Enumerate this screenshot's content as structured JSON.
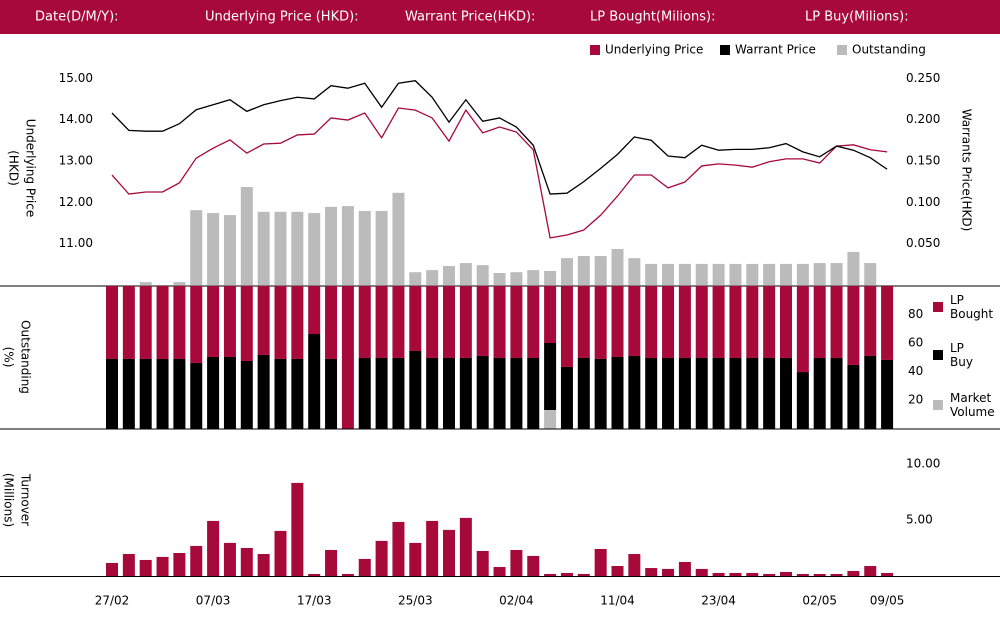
{
  "header": {
    "labels": [
      "Date(D/M/Y):",
      "Underlying Price (HKD):",
      "Warrant  Price(HKD):",
      "LP Bought(Milions):",
      "LP Buy(Milions):"
    ]
  },
  "chart_data": [
    {
      "type": "combo",
      "ylabel": [
        "Underlying Price",
        "(HKD)"
      ],
      "y2label": [
        "Warrants  Price(HKD)"
      ],
      "ylim": [
        10,
        15.2
      ],
      "yticks": [
        {
          "value": 11,
          "label": "11.00"
        },
        {
          "value": 12,
          "label": "12.00"
        },
        {
          "value": 13,
          "label": "13.00"
        },
        {
          "value": 14,
          "label": "14.00"
        },
        {
          "value": 15,
          "label": "15.00"
        }
      ],
      "y2lim": [
        0,
        0.26
      ],
      "y2ticks": [
        {
          "value": 0.05,
          "label": "0.050"
        },
        {
          "value": 0.1,
          "label": "0.100"
        },
        {
          "value": 0.15,
          "label": "0.150"
        },
        {
          "value": 0.2,
          "label": "0.200"
        },
        {
          "value": 0.25,
          "label": "0.250"
        }
      ],
      "series": [
        {
          "name": "Underlying Price",
          "type": "line",
          "color": "#a6093a",
          "axis": "y",
          "values": [
            12.66,
            12.2,
            12.25,
            12.25,
            12.47,
            13.07,
            13.31,
            13.51,
            13.19,
            13.41,
            13.43,
            13.63,
            13.65,
            14.04,
            13.99,
            14.16,
            13.56,
            14.28,
            14.23,
            14.04,
            13.48,
            14.23,
            13.68,
            13.82,
            13.7,
            13.27,
            11.14,
            11.21,
            11.33,
            11.69,
            12.15,
            12.66,
            12.66,
            12.35,
            12.49,
            12.88,
            12.93,
            12.9,
            12.85,
            12.98,
            13.05,
            13.05,
            12.95,
            13.36,
            13.39,
            13.27,
            13.22
          ]
        },
        {
          "name": "Warrant  Price",
          "type": "line",
          "color": "#000000",
          "axis": "y2",
          "values": [
            0.208,
            0.187,
            0.186,
            0.186,
            0.195,
            0.212,
            0.218,
            0.224,
            0.21,
            0.218,
            0.223,
            0.227,
            0.225,
            0.241,
            0.238,
            0.244,
            0.215,
            0.244,
            0.247,
            0.227,
            0.197,
            0.224,
            0.198,
            0.202,
            0.191,
            0.169,
            0.11,
            0.111,
            0.125,
            0.141,
            0.158,
            0.179,
            0.175,
            0.156,
            0.154,
            0.169,
            0.163,
            0.164,
            0.164,
            0.166,
            0.171,
            0.161,
            0.155,
            0.168,
            0.163,
            0.154,
            0.14
          ]
        },
        {
          "name": "Outstanding",
          "type": "bar",
          "color": "#bbbbbb",
          "axis": "y",
          "values": [
            null,
            null,
            10.07,
            null,
            10.07,
            11.81,
            11.74,
            11.69,
            12.37,
            11.77,
            11.77,
            11.77,
            11.74,
            11.89,
            11.91,
            11.79,
            11.79,
            12.23,
            10.31,
            10.36,
            10.46,
            10.53,
            10.48,
            10.29,
            10.31,
            10.36,
            10.34,
            10.65,
            10.7,
            10.7,
            10.87,
            10.65,
            10.51,
            10.51,
            10.51,
            10.51,
            10.51,
            10.51,
            10.51,
            10.51,
            10.51,
            10.51,
            10.53,
            10.53,
            10.8,
            10.53,
            null
          ]
        }
      ]
    },
    {
      "type": "stacked_bar",
      "ylabel": [
        "Outstanding",
        "(%)"
      ],
      "ylim": [
        0,
        100
      ],
      "yticks": [
        20,
        40,
        60,
        80
      ],
      "series": [
        {
          "name": "Market Volume",
          "color": "#bbbbbb",
          "values": [
            null,
            null,
            null,
            null,
            null,
            null,
            null,
            null,
            null,
            null,
            null,
            null,
            null,
            null,
            null,
            null,
            null,
            null,
            null,
            null,
            null,
            null,
            null,
            null,
            null,
            null,
            13,
            null,
            null,
            null,
            null,
            null,
            null,
            null,
            null,
            null,
            null,
            null,
            null,
            null,
            null,
            null,
            null,
            null,
            null,
            null,
            null
          ]
        },
        {
          "name": "LP Buy",
          "color": "#000000",
          "values": [
            48.8,
            48.8,
            48.8,
            48.8,
            48.8,
            46.0,
            50.2,
            50.2,
            47.4,
            51.6,
            48.8,
            48.8,
            66.3,
            48.8,
            0,
            49.5,
            49.5,
            49.5,
            54.4,
            49.5,
            49.5,
            49.5,
            50.9,
            49.5,
            49.5,
            49.5,
            47,
            43.2,
            49.5,
            48.8,
            50.2,
            50.9,
            49.5,
            49.5,
            49.5,
            49.5,
            49.5,
            49.5,
            49.5,
            49.5,
            49.5,
            39.6,
            49.5,
            49.5,
            44.6,
            50.9,
            48.1
          ]
        },
        {
          "name": "LP Bought",
          "color": "#a6093a",
          "values": [
            51.2,
            51.2,
            51.2,
            51.2,
            51.2,
            54.0,
            49.8,
            49.8,
            52.6,
            48.4,
            51.2,
            51.2,
            33.7,
            51.2,
            100,
            50.5,
            50.5,
            50.5,
            45.6,
            50.5,
            50.5,
            50.5,
            49.1,
            50.5,
            50.5,
            50.5,
            40,
            56.8,
            50.5,
            51.2,
            49.8,
            49.1,
            50.5,
            50.5,
            50.5,
            50.5,
            50.5,
            50.5,
            50.5,
            50.5,
            50.5,
            60.4,
            50.5,
            50.5,
            55.4,
            49.1,
            51.9
          ]
        }
      ]
    },
    {
      "type": "bar",
      "ylabel": [
        "Turnover",
        "(Millions)"
      ],
      "color": "#a6093a",
      "ylim": [
        0,
        11.5
      ],
      "yticks": [
        {
          "value": 5,
          "label": "5.00"
        },
        {
          "value": 10,
          "label": "10.00"
        }
      ],
      "categories": [
        "27/02",
        null,
        null,
        null,
        null,
        null,
        "07/03",
        null,
        null,
        null,
        null,
        null,
        "17/03",
        null,
        null,
        null,
        null,
        null,
        "25/03",
        null,
        null,
        null,
        null,
        null,
        "02/04",
        null,
        null,
        null,
        null,
        null,
        "11/04",
        null,
        null,
        null,
        null,
        null,
        "23/04",
        null,
        null,
        null,
        null,
        null,
        "02/05",
        null,
        null,
        null,
        "09/05"
      ],
      "values": [
        1.16,
        1.96,
        1.43,
        1.7,
        2.05,
        2.68,
        4.91,
        2.95,
        2.5,
        1.96,
        4.02,
        8.3,
        0.18,
        2.32,
        0.18,
        1.52,
        3.13,
        4.82,
        2.95,
        4.91,
        4.11,
        5.18,
        2.23,
        0.8,
        2.32,
        1.79,
        0.18,
        0.27,
        0.18,
        2.41,
        0.89,
        1.96,
        0.71,
        0.63,
        1.25,
        0.63,
        0.27,
        0.27,
        0.27,
        0.18,
        0.36,
        0.18,
        0.18,
        0.18,
        0.45,
        0.89,
        0.27
      ]
    }
  ]
}
